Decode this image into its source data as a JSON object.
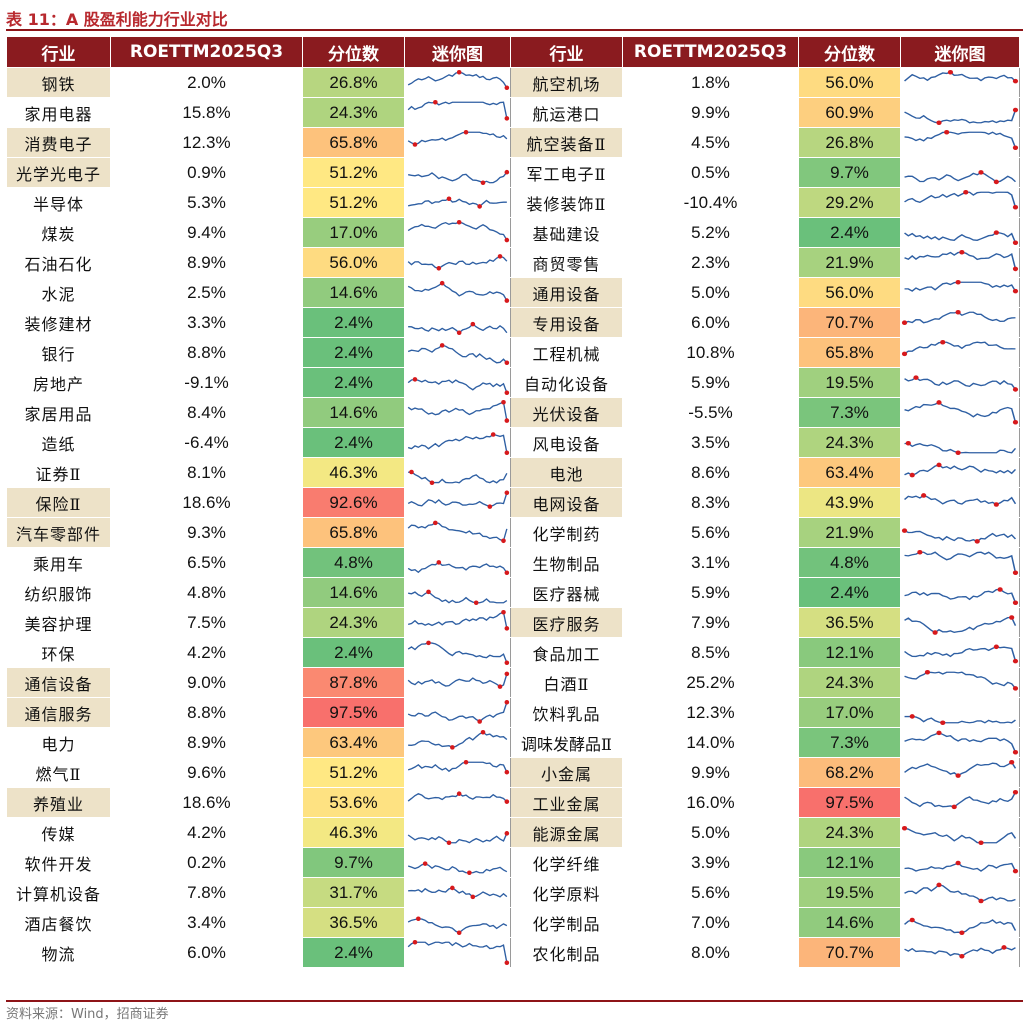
{
  "title": "表 11：A 股盈利能力行业对比",
  "source": "资料来源：Wind，招商证券",
  "headers": [
    "行业",
    "ROETTM2025Q3",
    "分位数",
    "迷你图",
    "行业",
    "ROETTM2025Q3",
    "分位数",
    "迷你图"
  ],
  "colors": {
    "header_bg": "#8a1b1f",
    "highlight_bg": "#ede2c8",
    "line": "#2e5fa3",
    "marker": "#d7191c"
  },
  "rows": [
    {
      "left": {
        "industry": "钢铁",
        "roe": "2.0%",
        "pct": "26.8%",
        "hl": true
      },
      "right": {
        "industry": "航空机场",
        "roe": "1.8%",
        "pct": "56.0%",
        "hl": true
      }
    },
    {
      "left": {
        "industry": "家用电器",
        "roe": "15.8%",
        "pct": "24.3%",
        "hl": false
      },
      "right": {
        "industry": "航运港口",
        "roe": "9.9%",
        "pct": "60.9%",
        "hl": false
      }
    },
    {
      "left": {
        "industry": "消费电子",
        "roe": "12.3%",
        "pct": "65.8%",
        "hl": true
      },
      "right": {
        "industry": "航空装备Ⅱ",
        "roe": "4.5%",
        "pct": "26.8%",
        "hl": true
      }
    },
    {
      "left": {
        "industry": "光学光电子",
        "roe": "0.9%",
        "pct": "51.2%",
        "hl": true
      },
      "right": {
        "industry": "军工电子Ⅱ",
        "roe": "0.5%",
        "pct": "9.7%",
        "hl": false
      }
    },
    {
      "left": {
        "industry": "半导体",
        "roe": "5.3%",
        "pct": "51.2%",
        "hl": false
      },
      "right": {
        "industry": "装修装饰Ⅱ",
        "roe": "-10.4%",
        "pct": "29.2%",
        "hl": false
      }
    },
    {
      "left": {
        "industry": "煤炭",
        "roe": "9.4%",
        "pct": "17.0%",
        "hl": false
      },
      "right": {
        "industry": "基础建设",
        "roe": "5.2%",
        "pct": "2.4%",
        "hl": false
      }
    },
    {
      "left": {
        "industry": "石油石化",
        "roe": "8.9%",
        "pct": "56.0%",
        "hl": false
      },
      "right": {
        "industry": "商贸零售",
        "roe": "2.3%",
        "pct": "21.9%",
        "hl": false
      }
    },
    {
      "left": {
        "industry": "水泥",
        "roe": "2.5%",
        "pct": "14.6%",
        "hl": false
      },
      "right": {
        "industry": "通用设备",
        "roe": "5.0%",
        "pct": "56.0%",
        "hl": true
      }
    },
    {
      "left": {
        "industry": "装修建材",
        "roe": "3.3%",
        "pct": "2.4%",
        "hl": false
      },
      "right": {
        "industry": "专用设备",
        "roe": "6.0%",
        "pct": "70.7%",
        "hl": true
      }
    },
    {
      "left": {
        "industry": "银行",
        "roe": "8.8%",
        "pct": "2.4%",
        "hl": false
      },
      "right": {
        "industry": "工程机械",
        "roe": "10.8%",
        "pct": "65.8%",
        "hl": false
      }
    },
    {
      "left": {
        "industry": "房地产",
        "roe": "-9.1%",
        "pct": "2.4%",
        "hl": false
      },
      "right": {
        "industry": "自动化设备",
        "roe": "5.9%",
        "pct": "19.5%",
        "hl": false
      }
    },
    {
      "left": {
        "industry": "家居用品",
        "roe": "8.4%",
        "pct": "14.6%",
        "hl": false
      },
      "right": {
        "industry": "光伏设备",
        "roe": "-5.5%",
        "pct": "7.3%",
        "hl": true
      }
    },
    {
      "left": {
        "industry": "造纸",
        "roe": "-6.4%",
        "pct": "2.4%",
        "hl": false
      },
      "right": {
        "industry": "风电设备",
        "roe": "3.5%",
        "pct": "24.3%",
        "hl": false
      }
    },
    {
      "left": {
        "industry": "证券Ⅱ",
        "roe": "8.1%",
        "pct": "46.3%",
        "hl": false
      },
      "right": {
        "industry": "电池",
        "roe": "8.6%",
        "pct": "63.4%",
        "hl": true
      }
    },
    {
      "left": {
        "industry": "保险Ⅱ",
        "roe": "18.6%",
        "pct": "92.6%",
        "hl": true
      },
      "right": {
        "industry": "电网设备",
        "roe": "8.3%",
        "pct": "43.9%",
        "hl": true
      }
    },
    {
      "left": {
        "industry": "汽车零部件",
        "roe": "9.3%",
        "pct": "65.8%",
        "hl": true
      },
      "right": {
        "industry": "化学制药",
        "roe": "5.6%",
        "pct": "21.9%",
        "hl": false
      }
    },
    {
      "left": {
        "industry": "乘用车",
        "roe": "6.5%",
        "pct": "4.8%",
        "hl": false
      },
      "right": {
        "industry": "生物制品",
        "roe": "3.1%",
        "pct": "4.8%",
        "hl": false
      }
    },
    {
      "left": {
        "industry": "纺织服饰",
        "roe": "4.8%",
        "pct": "14.6%",
        "hl": false
      },
      "right": {
        "industry": "医疗器械",
        "roe": "5.9%",
        "pct": "2.4%",
        "hl": false
      }
    },
    {
      "left": {
        "industry": "美容护理",
        "roe": "7.5%",
        "pct": "24.3%",
        "hl": false
      },
      "right": {
        "industry": "医疗服务",
        "roe": "7.9%",
        "pct": "36.5%",
        "hl": true
      }
    },
    {
      "left": {
        "industry": "环保",
        "roe": "4.2%",
        "pct": "2.4%",
        "hl": false
      },
      "right": {
        "industry": "食品加工",
        "roe": "8.5%",
        "pct": "12.1%",
        "hl": false
      }
    },
    {
      "left": {
        "industry": "通信设备",
        "roe": "9.0%",
        "pct": "87.8%",
        "hl": true
      },
      "right": {
        "industry": "白酒Ⅱ",
        "roe": "25.2%",
        "pct": "24.3%",
        "hl": false
      }
    },
    {
      "left": {
        "industry": "通信服务",
        "roe": "8.8%",
        "pct": "97.5%",
        "hl": true
      },
      "right": {
        "industry": "饮料乳品",
        "roe": "12.3%",
        "pct": "17.0%",
        "hl": false
      }
    },
    {
      "left": {
        "industry": "电力",
        "roe": "8.9%",
        "pct": "63.4%",
        "hl": false
      },
      "right": {
        "industry": "调味发酵品Ⅱ",
        "roe": "14.0%",
        "pct": "7.3%",
        "hl": false
      }
    },
    {
      "left": {
        "industry": "燃气Ⅱ",
        "roe": "9.6%",
        "pct": "51.2%",
        "hl": false
      },
      "right": {
        "industry": "小金属",
        "roe": "9.9%",
        "pct": "68.2%",
        "hl": true
      }
    },
    {
      "left": {
        "industry": "养殖业",
        "roe": "18.6%",
        "pct": "53.6%",
        "hl": true
      },
      "right": {
        "industry": "工业金属",
        "roe": "16.0%",
        "pct": "97.5%",
        "hl": true
      }
    },
    {
      "left": {
        "industry": "传媒",
        "roe": "4.2%",
        "pct": "46.3%",
        "hl": false
      },
      "right": {
        "industry": "能源金属",
        "roe": "5.0%",
        "pct": "24.3%",
        "hl": true
      }
    },
    {
      "left": {
        "industry": "软件开发",
        "roe": "0.2%",
        "pct": "9.7%",
        "hl": false
      },
      "right": {
        "industry": "化学纤维",
        "roe": "3.9%",
        "pct": "12.1%",
        "hl": false
      }
    },
    {
      "left": {
        "industry": "计算机设备",
        "roe": "7.8%",
        "pct": "31.7%",
        "hl": false
      },
      "right": {
        "industry": "化学原料",
        "roe": "5.6%",
        "pct": "19.5%",
        "hl": false
      }
    },
    {
      "left": {
        "industry": "酒店餐饮",
        "roe": "3.4%",
        "pct": "36.5%",
        "hl": false
      },
      "right": {
        "industry": "化学制品",
        "roe": "7.0%",
        "pct": "14.6%",
        "hl": false
      }
    },
    {
      "left": {
        "industry": "物流",
        "roe": "6.0%",
        "pct": "2.4%",
        "hl": false
      },
      "right": {
        "industry": "农化制品",
        "roe": "8.0%",
        "pct": "70.7%",
        "hl": false
      }
    }
  ]
}
